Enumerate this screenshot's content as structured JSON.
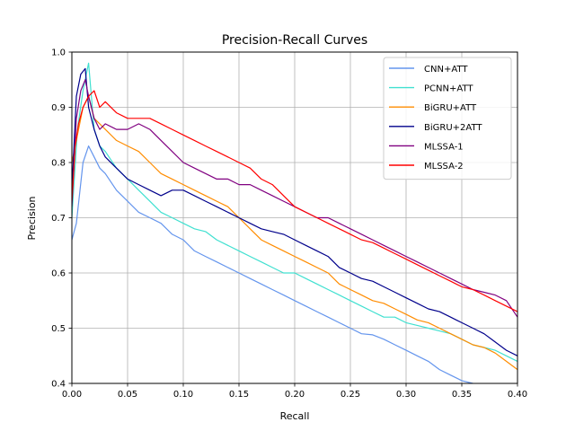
{
  "chart_data": {
    "type": "line",
    "title": "Precision-Recall Curves",
    "xlabel": "Recall",
    "ylabel": "Precision",
    "xlim": [
      0.0,
      0.4
    ],
    "ylim": [
      0.4,
      1.0
    ],
    "xticks": [
      0.0,
      0.05,
      0.1,
      0.15,
      0.2,
      0.25,
      0.3,
      0.35,
      0.4
    ],
    "xtick_labels": [
      "0.00",
      "0.05",
      "0.10",
      "0.15",
      "0.20",
      "0.25",
      "0.30",
      "0.35",
      "0.40"
    ],
    "yticks": [
      0.4,
      0.5,
      0.6,
      0.7,
      0.8,
      0.9,
      1.0
    ],
    "ytick_labels": [
      "0.4",
      "0.5",
      "0.6",
      "0.7",
      "0.8",
      "0.9",
      "1.0"
    ],
    "grid": true,
    "legend_position": "top-right",
    "series": [
      {
        "name": "CNN+ATT",
        "color": "#6495ED",
        "x": [
          0.0,
          0.004,
          0.01,
          0.015,
          0.02,
          0.025,
          0.03,
          0.04,
          0.05,
          0.06,
          0.07,
          0.08,
          0.09,
          0.1,
          0.11,
          0.12,
          0.13,
          0.14,
          0.15,
          0.16,
          0.17,
          0.18,
          0.19,
          0.2,
          0.21,
          0.22,
          0.23,
          0.24,
          0.25,
          0.26,
          0.27,
          0.28,
          0.29,
          0.3,
          0.31,
          0.32,
          0.33,
          0.34,
          0.35,
          0.36,
          0.36
        ],
        "y": [
          0.66,
          0.69,
          0.8,
          0.83,
          0.81,
          0.79,
          0.78,
          0.75,
          0.73,
          0.71,
          0.7,
          0.69,
          0.67,
          0.66,
          0.64,
          0.63,
          0.62,
          0.61,
          0.6,
          0.59,
          0.58,
          0.57,
          0.56,
          0.55,
          0.54,
          0.53,
          0.52,
          0.51,
          0.5,
          0.49,
          0.488,
          0.48,
          0.47,
          0.46,
          0.45,
          0.44,
          0.425,
          0.415,
          0.405,
          0.4,
          0.4
        ]
      },
      {
        "name": "PCNN+ATT",
        "color": "#40E0D0",
        "x": [
          0.0,
          0.005,
          0.01,
          0.015,
          0.02,
          0.025,
          0.03,
          0.04,
          0.05,
          0.06,
          0.07,
          0.08,
          0.09,
          0.1,
          0.11,
          0.12,
          0.13,
          0.14,
          0.15,
          0.16,
          0.17,
          0.18,
          0.19,
          0.2,
          0.21,
          0.22,
          0.23,
          0.24,
          0.25,
          0.26,
          0.27,
          0.28,
          0.29,
          0.3,
          0.31,
          0.32,
          0.33,
          0.34,
          0.35,
          0.36,
          0.37,
          0.38,
          0.39,
          0.4
        ],
        "y": [
          0.7,
          0.86,
          0.93,
          0.98,
          0.86,
          0.83,
          0.82,
          0.79,
          0.77,
          0.75,
          0.73,
          0.71,
          0.7,
          0.69,
          0.68,
          0.675,
          0.66,
          0.65,
          0.64,
          0.63,
          0.62,
          0.61,
          0.6,
          0.6,
          0.59,
          0.58,
          0.57,
          0.56,
          0.55,
          0.54,
          0.53,
          0.52,
          0.52,
          0.51,
          0.505,
          0.5,
          0.495,
          0.49,
          0.48,
          0.47,
          0.465,
          0.46,
          0.45,
          0.44
        ]
      },
      {
        "name": "BiGRU+ATT",
        "color": "#FF8C00",
        "x": [
          0.0,
          0.005,
          0.01,
          0.015,
          0.02,
          0.025,
          0.03,
          0.04,
          0.05,
          0.06,
          0.07,
          0.08,
          0.09,
          0.1,
          0.11,
          0.12,
          0.13,
          0.14,
          0.15,
          0.16,
          0.17,
          0.18,
          0.19,
          0.2,
          0.21,
          0.22,
          0.23,
          0.24,
          0.25,
          0.26,
          0.27,
          0.28,
          0.29,
          0.3,
          0.31,
          0.32,
          0.33,
          0.34,
          0.35,
          0.36,
          0.37,
          0.38,
          0.39,
          0.4
        ],
        "y": [
          0.8,
          0.85,
          0.9,
          0.92,
          0.88,
          0.87,
          0.86,
          0.84,
          0.83,
          0.82,
          0.8,
          0.78,
          0.77,
          0.76,
          0.75,
          0.74,
          0.73,
          0.72,
          0.7,
          0.68,
          0.66,
          0.65,
          0.64,
          0.63,
          0.62,
          0.61,
          0.6,
          0.58,
          0.57,
          0.56,
          0.55,
          0.545,
          0.535,
          0.525,
          0.515,
          0.51,
          0.5,
          0.49,
          0.48,
          0.47,
          0.465,
          0.455,
          0.44,
          0.425
        ]
      },
      {
        "name": "BiGRU+2ATT",
        "color": "#00008B",
        "x": [
          0.0,
          0.004,
          0.008,
          0.012,
          0.015,
          0.02,
          0.025,
          0.03,
          0.04,
          0.05,
          0.06,
          0.07,
          0.08,
          0.09,
          0.1,
          0.11,
          0.12,
          0.13,
          0.14,
          0.15,
          0.16,
          0.17,
          0.18,
          0.19,
          0.2,
          0.21,
          0.22,
          0.23,
          0.24,
          0.25,
          0.26,
          0.27,
          0.28,
          0.29,
          0.3,
          0.31,
          0.32,
          0.33,
          0.34,
          0.35,
          0.36,
          0.37,
          0.38,
          0.39,
          0.4
        ],
        "y": [
          0.75,
          0.92,
          0.96,
          0.97,
          0.9,
          0.86,
          0.83,
          0.81,
          0.79,
          0.77,
          0.76,
          0.75,
          0.74,
          0.75,
          0.75,
          0.74,
          0.73,
          0.72,
          0.71,
          0.7,
          0.69,
          0.68,
          0.675,
          0.67,
          0.66,
          0.65,
          0.64,
          0.63,
          0.61,
          0.6,
          0.59,
          0.585,
          0.575,
          0.565,
          0.555,
          0.545,
          0.535,
          0.53,
          0.52,
          0.51,
          0.5,
          0.49,
          0.475,
          0.46,
          0.45
        ]
      },
      {
        "name": "MLSSA-1",
        "color": "#800080",
        "x": [
          0.0,
          0.004,
          0.008,
          0.012,
          0.015,
          0.02,
          0.025,
          0.03,
          0.04,
          0.05,
          0.06,
          0.07,
          0.08,
          0.09,
          0.1,
          0.11,
          0.12,
          0.13,
          0.14,
          0.15,
          0.16,
          0.17,
          0.18,
          0.19,
          0.2,
          0.21,
          0.22,
          0.23,
          0.24,
          0.25,
          0.26,
          0.27,
          0.28,
          0.29,
          0.3,
          0.31,
          0.32,
          0.33,
          0.34,
          0.35,
          0.36,
          0.37,
          0.38,
          0.39,
          0.4
        ],
        "y": [
          0.72,
          0.88,
          0.93,
          0.95,
          0.92,
          0.88,
          0.86,
          0.87,
          0.86,
          0.86,
          0.87,
          0.86,
          0.84,
          0.82,
          0.8,
          0.79,
          0.78,
          0.77,
          0.77,
          0.76,
          0.76,
          0.75,
          0.74,
          0.73,
          0.72,
          0.71,
          0.7,
          0.7,
          0.69,
          0.68,
          0.67,
          0.66,
          0.65,
          0.64,
          0.63,
          0.62,
          0.61,
          0.6,
          0.59,
          0.58,
          0.57,
          0.565,
          0.56,
          0.55,
          0.52
        ]
      },
      {
        "name": "MLSSA-2",
        "color": "#FF0000",
        "x": [
          0.0,
          0.003,
          0.006,
          0.01,
          0.015,
          0.02,
          0.025,
          0.03,
          0.04,
          0.05,
          0.06,
          0.07,
          0.08,
          0.09,
          0.1,
          0.11,
          0.12,
          0.13,
          0.14,
          0.15,
          0.16,
          0.17,
          0.18,
          0.19,
          0.2,
          0.21,
          0.22,
          0.23,
          0.24,
          0.25,
          0.26,
          0.27,
          0.28,
          0.29,
          0.3,
          0.31,
          0.32,
          0.33,
          0.34,
          0.35,
          0.36,
          0.37,
          0.38,
          0.39,
          0.4
        ],
        "y": [
          0.73,
          0.83,
          0.87,
          0.9,
          0.92,
          0.93,
          0.9,
          0.91,
          0.89,
          0.88,
          0.88,
          0.88,
          0.87,
          0.86,
          0.85,
          0.84,
          0.83,
          0.82,
          0.81,
          0.8,
          0.79,
          0.77,
          0.76,
          0.74,
          0.72,
          0.71,
          0.7,
          0.69,
          0.68,
          0.67,
          0.66,
          0.655,
          0.645,
          0.635,
          0.625,
          0.615,
          0.605,
          0.595,
          0.585,
          0.575,
          0.57,
          0.56,
          0.55,
          0.54,
          0.53
        ]
      }
    ]
  }
}
